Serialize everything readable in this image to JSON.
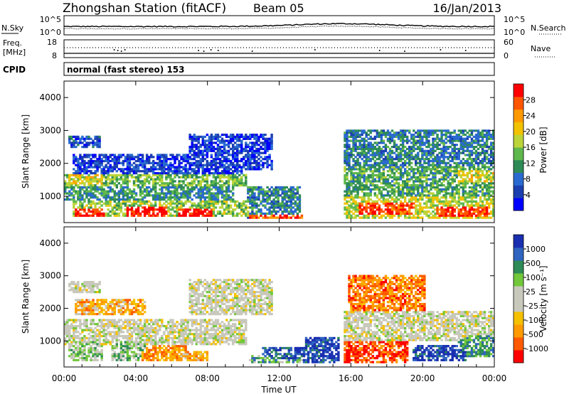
{
  "header": {
    "title": "Zhongshan Station (fitACF)",
    "beam": "Beam 05",
    "date": "16/Jan/2013"
  },
  "noise_panel": {
    "left_label": "N.Sky",
    "right_label": "N.Search",
    "left_ticks": [
      "10^5",
      "10^0"
    ],
    "right_ticks": [
      "10^5",
      "10^0"
    ]
  },
  "freq_panel": {
    "left_label_line1": "Freq.",
    "left_label_line2": "[MHz]",
    "left_ticks": [
      "18",
      "8"
    ],
    "right_ticks": [
      "60",
      "0"
    ],
    "right_label": "Nave"
  },
  "cpid": {
    "label": "CPID",
    "text": "normal (fast stereo) 153"
  },
  "chart_data": [
    {
      "type": "heatmap",
      "title": "Power",
      "ylabel": "Slant Range [km]",
      "yticks": [
        "4000",
        "3000",
        "2000",
        "1000"
      ],
      "ylim": [
        200,
        4500
      ],
      "colorbar_label": "Power [dB]",
      "colorbar_ticks": [
        "28",
        "24",
        "20",
        "16",
        "12",
        "8",
        "4"
      ],
      "colors": [
        "#0000ff",
        "#1c3fb0",
        "#2a6ad0",
        "#2e8b57",
        "#5fb84c",
        "#bcd43a",
        "#f2c200",
        "#ff9900",
        "#ff5500",
        "#ff0000"
      ],
      "blobs": [
        {
          "t0": 0.0,
          "t1": 10.2,
          "r0": 1300,
          "r1": 1700,
          "level": 0.45
        },
        {
          "t0": 0.0,
          "t1": 9.5,
          "r0": 900,
          "r1": 1300,
          "level": 0.35
        },
        {
          "t0": 0.5,
          "t1": 10.3,
          "r0": 400,
          "r1": 900,
          "level": 0.5
        },
        {
          "t0": 0.6,
          "t1": 2.3,
          "r0": 400,
          "r1": 620,
          "level": 0.95
        },
        {
          "t0": 3.5,
          "t1": 5.8,
          "r0": 380,
          "r1": 680,
          "level": 0.95
        },
        {
          "t0": 6.4,
          "t1": 8.3,
          "r0": 380,
          "r1": 650,
          "level": 0.95
        },
        {
          "t0": 0.3,
          "t1": 2.2,
          "r0": 1350,
          "r1": 1650,
          "level": 0.6
        },
        {
          "t0": 0.3,
          "t1": 2.0,
          "r0": 2450,
          "r1": 2850,
          "level": 0.2
        },
        {
          "t0": 0.5,
          "t1": 10.0,
          "r0": 1700,
          "r1": 2300,
          "level": 0.15
        },
        {
          "t0": 7.0,
          "t1": 11.6,
          "r0": 1800,
          "r1": 2900,
          "level": 0.15
        },
        {
          "t0": 10.2,
          "t1": 13.2,
          "r0": 300,
          "r1": 1300,
          "level": 0.3
        },
        {
          "t0": 10.3,
          "t1": 13.3,
          "r0": 320,
          "r1": 420,
          "level": 0.85
        },
        {
          "t0": 15.6,
          "t1": 24.0,
          "r0": 1900,
          "r1": 3000,
          "level": 0.3
        },
        {
          "t0": 15.6,
          "t1": 24.0,
          "r0": 1000,
          "r1": 1900,
          "level": 0.4
        },
        {
          "t0": 15.6,
          "t1": 24.0,
          "r0": 350,
          "r1": 1000,
          "level": 0.55
        },
        {
          "t0": 16.4,
          "t1": 19.5,
          "r0": 420,
          "r1": 820,
          "level": 0.9
        },
        {
          "t0": 20.8,
          "t1": 23.8,
          "r0": 380,
          "r1": 700,
          "level": 0.9
        },
        {
          "t0": 22.0,
          "t1": 24.0,
          "r0": 1400,
          "r1": 1800,
          "level": 0.6
        }
      ]
    },
    {
      "type": "heatmap",
      "title": "Velocity",
      "ylabel": "Slant Range [km]",
      "yticks": [
        "4000",
        "3000",
        "2000",
        "1000"
      ],
      "ylim": [
        200,
        4500
      ],
      "xlabel": "Time UT",
      "xticks": [
        "00:00",
        "04:00",
        "08:00",
        "12:00",
        "16:00",
        "20:00",
        "00:00"
      ],
      "xlim": [
        0,
        24
      ],
      "colorbar_label": "Velocity [m s⁻¹]",
      "colorbar_ticks": [
        "1000",
        "500",
        "100",
        "25",
        "-25",
        "-100",
        "-500",
        "-1000"
      ],
      "colors": [
        "#ff0000",
        "#ff5a00",
        "#ff9a00",
        "#f5c000",
        "#c8c8bc",
        "#c8c8bc",
        "#72c83a",
        "#2e8b57",
        "#2f64c0",
        "#1a2fb0"
      ],
      "blobs": [
        {
          "t0": 0.0,
          "t1": 10.2,
          "r0": 900,
          "r1": 1700,
          "level": 0.5
        },
        {
          "t0": 0.3,
          "t1": 2.2,
          "r0": 400,
          "r1": 1000,
          "level": 0.62
        },
        {
          "t0": 2.6,
          "t1": 4.8,
          "r0": 400,
          "r1": 1000,
          "level": 0.62
        },
        {
          "t0": 3.8,
          "t1": 6.8,
          "r0": 380,
          "r1": 900,
          "level": 0.25
        },
        {
          "t0": 6.4,
          "t1": 8.0,
          "r0": 380,
          "r1": 700,
          "level": 0.3
        },
        {
          "t0": 0.6,
          "t1": 4.6,
          "r0": 1800,
          "r1": 2300,
          "level": 0.3
        },
        {
          "t0": 0.3,
          "t1": 2.0,
          "r0": 2450,
          "r1": 2850,
          "level": 0.5
        },
        {
          "t0": 7.0,
          "t1": 11.6,
          "r0": 1800,
          "r1": 2900,
          "level": 0.5
        },
        {
          "t0": 10.3,
          "t1": 13.3,
          "r0": 320,
          "r1": 560,
          "level": 0.7
        },
        {
          "t0": 11.0,
          "t1": 13.4,
          "r0": 350,
          "r1": 800,
          "level": 0.9
        },
        {
          "t0": 13.4,
          "t1": 15.4,
          "r0": 350,
          "r1": 1100,
          "level": 0.9
        },
        {
          "t0": 15.6,
          "t1": 19.2,
          "r0": 350,
          "r1": 1000,
          "level": 0.12
        },
        {
          "t0": 15.8,
          "t1": 20.2,
          "r0": 1900,
          "r1": 3000,
          "level": 0.2
        },
        {
          "t0": 15.6,
          "t1": 24.0,
          "r0": 1000,
          "r1": 1900,
          "level": 0.5
        },
        {
          "t0": 19.4,
          "t1": 22.4,
          "r0": 380,
          "r1": 900,
          "level": 0.9
        },
        {
          "t0": 22.0,
          "t1": 24.0,
          "r0": 500,
          "r1": 1200,
          "level": 0.75
        },
        {
          "t0": 19.0,
          "t1": 24.0,
          "r0": 1400,
          "r1": 1900,
          "level": 0.5
        }
      ]
    }
  ]
}
